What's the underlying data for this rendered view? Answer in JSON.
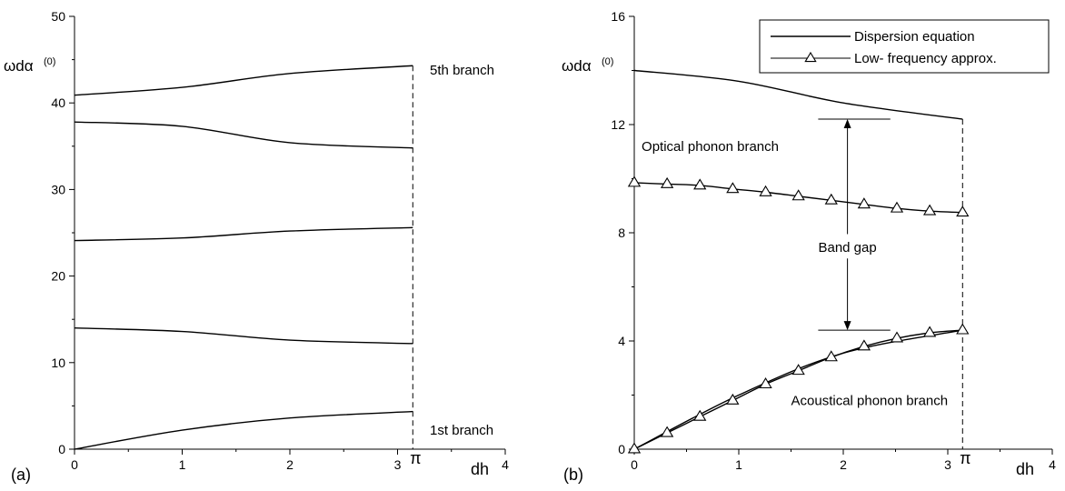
{
  "chart_data": [
    {
      "type": "line",
      "panel_label": "(a)",
      "ylabel": "ωdα",
      "ylabel_sup": "(0)",
      "xlabel": "dh",
      "xlim": [
        0,
        4
      ],
      "ylim": [
        0,
        50
      ],
      "x_ticks": [
        "0",
        "1",
        "2",
        "3",
        "4"
      ],
      "y_ticks": [
        "0",
        "10",
        "20",
        "30",
        "40",
        "50"
      ],
      "pi_label": "π",
      "pi_x": 3.1416,
      "series": [
        {
          "x": [
            0,
            1,
            2,
            3.1416
          ],
          "y": [
            0,
            2.2,
            3.6,
            4.35
          ]
        },
        {
          "x": [
            0,
            1,
            2,
            3.1416
          ],
          "y": [
            14.0,
            13.6,
            12.6,
            12.2
          ]
        },
        {
          "x": [
            0,
            1,
            2,
            3.1416
          ],
          "y": [
            24.1,
            24.4,
            25.2,
            25.6
          ]
        },
        {
          "x": [
            0,
            1,
            2,
            3.1416
          ],
          "y": [
            37.8,
            37.3,
            35.4,
            34.8
          ]
        },
        {
          "x": [
            0,
            1,
            2,
            3.1416
          ],
          "y": [
            40.9,
            41.8,
            43.4,
            44.3
          ]
        }
      ],
      "annotations": [
        {
          "text": "5th branch",
          "x": 3.3,
          "y": 43.8
        },
        {
          "text": "1st branch",
          "x": 3.3,
          "y": 2.2
        }
      ]
    },
    {
      "type": "line",
      "panel_label": "(b)",
      "ylabel": "ωdα",
      "ylabel_sup": "(0)",
      "xlabel": "dh",
      "xlim": [
        0,
        4
      ],
      "ylim": [
        0,
        16
      ],
      "x_ticks": [
        "0",
        "1",
        "2",
        "3",
        "4"
      ],
      "y_ticks": [
        "0",
        "4",
        "8",
        "12",
        "16"
      ],
      "pi_label": "π",
      "pi_x": 3.1416,
      "legend": {
        "placement": "top-right",
        "entries": [
          "Dispersion equation",
          "Low- frequency approx."
        ]
      },
      "series": [
        {
          "name": "Dispersion equation",
          "x": [
            0,
            1,
            2,
            3.1416
          ],
          "y": [
            14.0,
            13.6,
            12.8,
            12.2
          ]
        },
        {
          "name": "Dispersion equation",
          "x": [
            0,
            1,
            2,
            3.1416
          ],
          "y": [
            0,
            2.0,
            3.55,
            4.4
          ]
        },
        {
          "name": "Low- frequency approx.",
          "x": [
            0,
            0.314,
            0.628,
            0.942,
            1.257,
            1.571,
            1.885,
            2.199,
            2.513,
            2.827,
            3.1416
          ],
          "y": [
            9.85,
            9.8,
            9.75,
            9.62,
            9.5,
            9.35,
            9.2,
            9.05,
            8.9,
            8.8,
            8.75
          ]
        },
        {
          "name": "Low- frequency approx.",
          "x": [
            0,
            0.314,
            0.628,
            0.942,
            1.257,
            1.571,
            1.885,
            2.199,
            2.513,
            2.827,
            3.1416
          ],
          "y": [
            0,
            0.6,
            1.2,
            1.8,
            2.4,
            2.9,
            3.4,
            3.8,
            4.1,
            4.3,
            4.4
          ]
        }
      ],
      "gap_arrow": {
        "x": 2.04,
        "y_top": 12.2,
        "y_bottom": 4.4,
        "label": "Band gap"
      },
      "annotations": [
        {
          "text": "Optical phonon branch",
          "x": 0.07,
          "y": 11.2
        },
        {
          "text": "Acoustical phonon branch",
          "x": 1.5,
          "y": 1.8
        }
      ]
    }
  ]
}
